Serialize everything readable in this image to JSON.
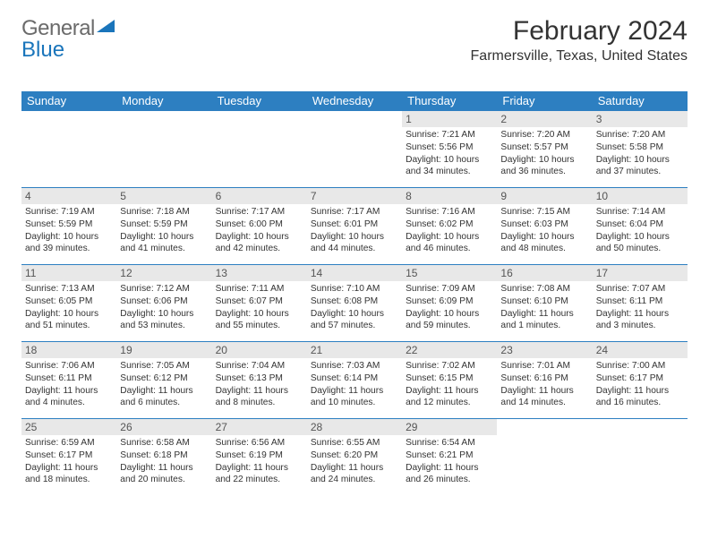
{
  "brand": {
    "part1": "General",
    "part2": "Blue"
  },
  "title": "February 2024",
  "location": "Farmersville, Texas, United States",
  "colors": {
    "header_bg": "#2d7fc1",
    "header_text": "#ffffff",
    "daynum_bg": "#e8e8e8",
    "row_border": "#2d7fc1",
    "body_text": "#333333",
    "brand_gray": "#6b6b6b",
    "brand_blue": "#1a75bb",
    "page_bg": "#ffffff"
  },
  "fonts": {
    "title_size_pt": 30,
    "location_size_pt": 16,
    "header_cell_pt": 13,
    "daynum_pt": 12,
    "detail_pt": 10
  },
  "weekdays": [
    "Sunday",
    "Monday",
    "Tuesday",
    "Wednesday",
    "Thursday",
    "Friday",
    "Saturday"
  ],
  "weeks": [
    [
      null,
      null,
      null,
      null,
      {
        "n": "1",
        "sunrise": "7:21 AM",
        "sunset": "5:56 PM",
        "day_h": 10,
        "day_m": 34
      },
      {
        "n": "2",
        "sunrise": "7:20 AM",
        "sunset": "5:57 PM",
        "day_h": 10,
        "day_m": 36
      },
      {
        "n": "3",
        "sunrise": "7:20 AM",
        "sunset": "5:58 PM",
        "day_h": 10,
        "day_m": 37
      }
    ],
    [
      {
        "n": "4",
        "sunrise": "7:19 AM",
        "sunset": "5:59 PM",
        "day_h": 10,
        "day_m": 39
      },
      {
        "n": "5",
        "sunrise": "7:18 AM",
        "sunset": "5:59 PM",
        "day_h": 10,
        "day_m": 41
      },
      {
        "n": "6",
        "sunrise": "7:17 AM",
        "sunset": "6:00 PM",
        "day_h": 10,
        "day_m": 42
      },
      {
        "n": "7",
        "sunrise": "7:17 AM",
        "sunset": "6:01 PM",
        "day_h": 10,
        "day_m": 44
      },
      {
        "n": "8",
        "sunrise": "7:16 AM",
        "sunset": "6:02 PM",
        "day_h": 10,
        "day_m": 46
      },
      {
        "n": "9",
        "sunrise": "7:15 AM",
        "sunset": "6:03 PM",
        "day_h": 10,
        "day_m": 48
      },
      {
        "n": "10",
        "sunrise": "7:14 AM",
        "sunset": "6:04 PM",
        "day_h": 10,
        "day_m": 50
      }
    ],
    [
      {
        "n": "11",
        "sunrise": "7:13 AM",
        "sunset": "6:05 PM",
        "day_h": 10,
        "day_m": 51
      },
      {
        "n": "12",
        "sunrise": "7:12 AM",
        "sunset": "6:06 PM",
        "day_h": 10,
        "day_m": 53
      },
      {
        "n": "13",
        "sunrise": "7:11 AM",
        "sunset": "6:07 PM",
        "day_h": 10,
        "day_m": 55
      },
      {
        "n": "14",
        "sunrise": "7:10 AM",
        "sunset": "6:08 PM",
        "day_h": 10,
        "day_m": 57
      },
      {
        "n": "15",
        "sunrise": "7:09 AM",
        "sunset": "6:09 PM",
        "day_h": 10,
        "day_m": 59
      },
      {
        "n": "16",
        "sunrise": "7:08 AM",
        "sunset": "6:10 PM",
        "day_h": 11,
        "day_m": 1
      },
      {
        "n": "17",
        "sunrise": "7:07 AM",
        "sunset": "6:11 PM",
        "day_h": 11,
        "day_m": 3
      }
    ],
    [
      {
        "n": "18",
        "sunrise": "7:06 AM",
        "sunset": "6:11 PM",
        "day_h": 11,
        "day_m": 4
      },
      {
        "n": "19",
        "sunrise": "7:05 AM",
        "sunset": "6:12 PM",
        "day_h": 11,
        "day_m": 6
      },
      {
        "n": "20",
        "sunrise": "7:04 AM",
        "sunset": "6:13 PM",
        "day_h": 11,
        "day_m": 8
      },
      {
        "n": "21",
        "sunrise": "7:03 AM",
        "sunset": "6:14 PM",
        "day_h": 11,
        "day_m": 10
      },
      {
        "n": "22",
        "sunrise": "7:02 AM",
        "sunset": "6:15 PM",
        "day_h": 11,
        "day_m": 12
      },
      {
        "n": "23",
        "sunrise": "7:01 AM",
        "sunset": "6:16 PM",
        "day_h": 11,
        "day_m": 14
      },
      {
        "n": "24",
        "sunrise": "7:00 AM",
        "sunset": "6:17 PM",
        "day_h": 11,
        "day_m": 16
      }
    ],
    [
      {
        "n": "25",
        "sunrise": "6:59 AM",
        "sunset": "6:17 PM",
        "day_h": 11,
        "day_m": 18
      },
      {
        "n": "26",
        "sunrise": "6:58 AM",
        "sunset": "6:18 PM",
        "day_h": 11,
        "day_m": 20
      },
      {
        "n": "27",
        "sunrise": "6:56 AM",
        "sunset": "6:19 PM",
        "day_h": 11,
        "day_m": 22
      },
      {
        "n": "28",
        "sunrise": "6:55 AM",
        "sunset": "6:20 PM",
        "day_h": 11,
        "day_m": 24
      },
      {
        "n": "29",
        "sunrise": "6:54 AM",
        "sunset": "6:21 PM",
        "day_h": 11,
        "day_m": 26
      },
      null,
      null
    ]
  ],
  "labels": {
    "sunrise": "Sunrise:",
    "sunset": "Sunset:",
    "daylight_prefix": "Daylight:",
    "hours_word": "hours",
    "and_word": "and",
    "minutes_word": "minutes."
  }
}
